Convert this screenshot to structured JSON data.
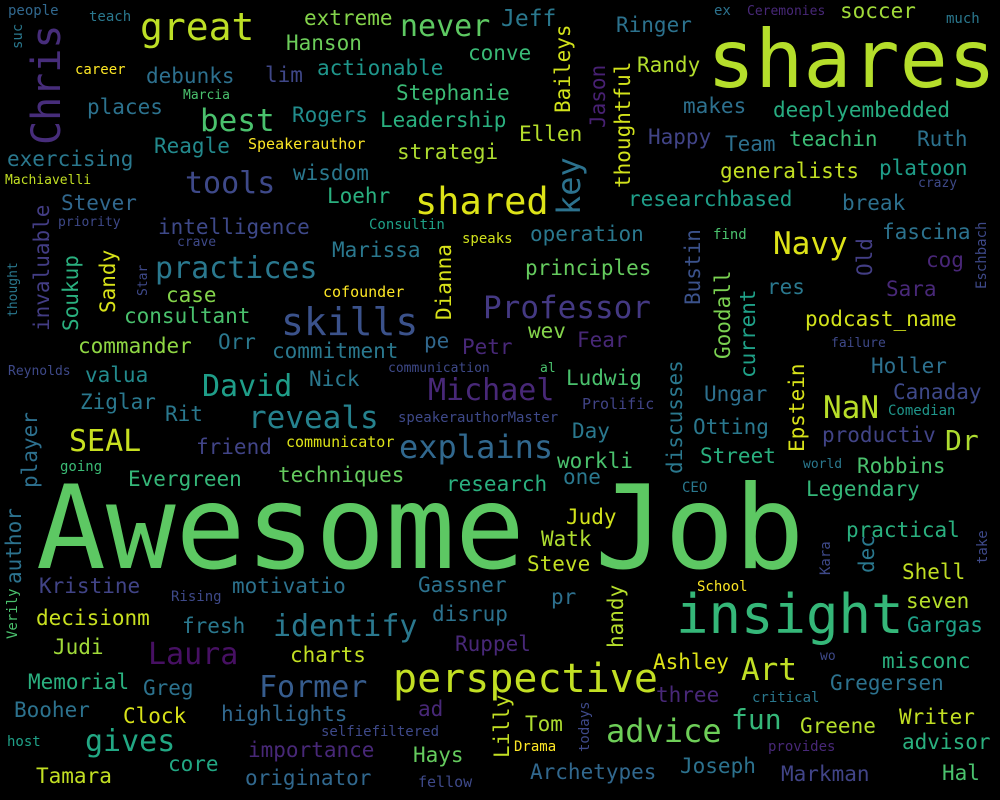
{
  "words": [
    {
      "text": "Awesome Job",
      "color": "#5dc863"
    },
    {
      "text": "shares",
      "color": "#b5de2b"
    },
    {
      "text": "insight",
      "color": "#35b779"
    },
    {
      "text": "perspective",
      "color": "#c2df23"
    },
    {
      "text": "great",
      "color": "#bddf26"
    },
    {
      "text": "skills",
      "color": "#3b528b"
    },
    {
      "text": "shared",
      "color": "#dde318"
    },
    {
      "text": "explains",
      "color": "#31688e"
    },
    {
      "text": "Chris",
      "color": "#472d7b"
    },
    {
      "text": "Professor",
      "color": "#443983"
    },
    {
      "text": "reveals",
      "color": "#26828e"
    },
    {
      "text": "practices",
      "color": "#2a788e"
    },
    {
      "text": "Michael",
      "color": "#482878"
    },
    {
      "text": "David",
      "color": "#1f9e89"
    },
    {
      "text": "identify",
      "color": "#2a788e"
    },
    {
      "text": "Former",
      "color": "#365c8d"
    },
    {
      "text": "advice",
      "color": "#6ece58"
    },
    {
      "text": "Laura",
      "color": "#471063"
    },
    {
      "text": "never",
      "color": "#5ec962"
    },
    {
      "text": "best",
      "color": "#4ac16d"
    },
    {
      "text": "tools",
      "color": "#3e4989"
    },
    {
      "text": "key",
      "color": "#2c728e"
    },
    {
      "text": "Navy",
      "color": "#dde318"
    },
    {
      "text": "NaN",
      "color": "#b8de29"
    },
    {
      "text": "Art",
      "color": "#c0df25"
    },
    {
      "text": "fun",
      "color": "#35b779"
    },
    {
      "text": "gives",
      "color": "#22a884"
    },
    {
      "text": "SEAL",
      "color": "#c8e020"
    },
    {
      "text": "Dr",
      "color": "#addc30"
    },
    {
      "text": "Jeff",
      "color": "#2a788e"
    },
    {
      "text": "Ringer",
      "color": "#2c728e"
    },
    {
      "text": "soccer",
      "color": "#a0da39"
    },
    {
      "text": "extreme",
      "color": "#84d44b"
    },
    {
      "text": "Hanson",
      "color": "#6ccd5a"
    },
    {
      "text": "conve",
      "color": "#3aba76"
    },
    {
      "text": "Randy",
      "color": "#b2dd2d"
    },
    {
      "text": "debunks",
      "color": "#2d708e"
    },
    {
      "text": "lim",
      "color": "#3f4788"
    },
    {
      "text": "actionable",
      "color": "#1f968b"
    },
    {
      "text": "Baileys",
      "color": "#d2e21b"
    },
    {
      "text": "Stephanie",
      "color": "#3bbb75"
    },
    {
      "text": "Jason",
      "color": "#482173"
    },
    {
      "text": "makes",
      "color": "#2d708e"
    },
    {
      "text": "deeplyembedded",
      "color": "#27ad81"
    },
    {
      "text": "places",
      "color": "#2c728e"
    },
    {
      "text": "Rogers",
      "color": "#228d8d"
    },
    {
      "text": "Leadership",
      "color": "#2ab07f"
    },
    {
      "text": "Ellen",
      "color": "#b5de2b"
    },
    {
      "text": "thoughtful",
      "color": "#d2e21b"
    },
    {
      "text": "Happy",
      "color": "#414487"
    },
    {
      "text": "Team",
      "color": "#2d708e"
    },
    {
      "text": "teachin",
      "color": "#3bbb75"
    },
    {
      "text": "Ruth",
      "color": "#2c728e"
    },
    {
      "text": "Reagle",
      "color": "#238a8d"
    },
    {
      "text": "Speakerauthor",
      "color": "#fde725"
    },
    {
      "text": "strategi",
      "color": "#addc30"
    },
    {
      "text": "exercising",
      "color": "#2a788e"
    },
    {
      "text": "wisdom",
      "color": "#2a788e"
    },
    {
      "text": "generalists",
      "color": "#c2df23"
    },
    {
      "text": "platoon",
      "color": "#1f9e89"
    },
    {
      "text": "Machiavelli",
      "color": "#c2df23"
    },
    {
      "text": "crazy",
      "color": "#3e4a89"
    },
    {
      "text": "Loehr",
      "color": "#2ab07f"
    },
    {
      "text": "researchbased",
      "color": "#1f9e89"
    },
    {
      "text": "break",
      "color": "#2d708e"
    },
    {
      "text": "Stever",
      "color": "#31688e"
    },
    {
      "text": "priority",
      "color": "#3e4989"
    },
    {
      "text": "intelligence",
      "color": "#3e4989"
    },
    {
      "text": "Consultin",
      "color": "#1fa188"
    },
    {
      "text": "operation",
      "color": "#2a788e"
    },
    {
      "text": "find",
      "color": "#4ac16d"
    },
    {
      "text": "fascina",
      "color": "#2c728e"
    },
    {
      "text": "Eschbach",
      "color": "#3e4989"
    },
    {
      "text": "invaluable",
      "color": "#433d84"
    },
    {
      "text": "crave",
      "color": "#3e4989"
    },
    {
      "text": "Marissa",
      "color": "#2a788e"
    },
    {
      "text": "speaks",
      "color": "#d0e11c"
    },
    {
      "text": "Dianna",
      "color": "#d8e219"
    },
    {
      "text": "Bustin",
      "color": "#3b528b"
    },
    {
      "text": "Old",
      "color": "#433e85"
    },
    {
      "text": "cog",
      "color": "#482677"
    },
    {
      "text": "thought",
      "color": "#2a788e"
    },
    {
      "text": "Star",
      "color": "#3e4989"
    },
    {
      "text": "Sandy",
      "color": "#d8e219"
    },
    {
      "text": "Soukup",
      "color": "#2ab07f"
    },
    {
      "text": "case",
      "color": "#84d44b"
    },
    {
      "text": "principles",
      "color": "#65cb5e"
    },
    {
      "text": "res",
      "color": "#2a788e"
    },
    {
      "text": "Sara",
      "color": "#482878"
    },
    {
      "text": "cofounder",
      "color": "#fde725"
    },
    {
      "text": "Goodall",
      "color": "#7ad151"
    },
    {
      "text": "consultant",
      "color": "#4ac16d"
    },
    {
      "text": "podcast_name",
      "color": "#d2e21b"
    },
    {
      "text": "wev",
      "color": "#84d44b"
    },
    {
      "text": "current",
      "color": "#1fa188"
    },
    {
      "text": "commander",
      "color": "#8fd744"
    },
    {
      "text": "Orr",
      "color": "#2a788e"
    },
    {
      "text": "commitment",
      "color": "#2a788e"
    },
    {
      "text": "pe",
      "color": "#31688e"
    },
    {
      "text": "Petr",
      "color": "#482878"
    },
    {
      "text": "Fear",
      "color": "#482878"
    },
    {
      "text": "failure",
      "color": "#3e4989"
    },
    {
      "text": "Reynolds",
      "color": "#3e4989"
    },
    {
      "text": "communication",
      "color": "#3e4989"
    },
    {
      "text": "valua",
      "color": "#238a8d"
    },
    {
      "text": "Nick",
      "color": "#2a788e"
    },
    {
      "text": "al",
      "color": "#4ac16d"
    },
    {
      "text": "Ludwig",
      "color": "#4ac16d"
    },
    {
      "text": "discusses",
      "color": "#2a788e"
    },
    {
      "text": "Epstein",
      "color": "#d8e219"
    },
    {
      "text": "Holler",
      "color": "#2d708e"
    },
    {
      "text": "Ungar",
      "color": "#2d708e"
    },
    {
      "text": "Canaday",
      "color": "#3e4989"
    },
    {
      "text": "Ziglar",
      "color": "#2a788e"
    },
    {
      "text": "Rit",
      "color": "#2a788e"
    },
    {
      "text": "speakerauthorMaster",
      "color": "#3e4989"
    },
    {
      "text": "Prolific",
      "color": "#414487"
    },
    {
      "text": "Comedian",
      "color": "#1f968b"
    },
    {
      "text": "player",
      "color": "#2d708e"
    },
    {
      "text": "friend",
      "color": "#414487"
    },
    {
      "text": "communicator",
      "color": "#dde318"
    },
    {
      "text": "Day",
      "color": "#2a788e"
    },
    {
      "text": "Otting",
      "color": "#2a788e"
    },
    {
      "text": "productiv",
      "color": "#414487"
    },
    {
      "text": "workli",
      "color": "#4ac16d"
    },
    {
      "text": "Street",
      "color": "#2ab07f"
    },
    {
      "text": "going",
      "color": "#3bbb75"
    },
    {
      "text": "Evergreen",
      "color": "#35b779"
    },
    {
      "text": "techniques",
      "color": "#65cb5e"
    },
    {
      "text": "one",
      "color": "#2a788e"
    },
    {
      "text": "world",
      "color": "#2a788e"
    },
    {
      "text": "Robbins",
      "color": "#4ac16d"
    },
    {
      "text": "research",
      "color": "#2ab07f"
    },
    {
      "text": "CEO",
      "color": "#2a788e"
    },
    {
      "text": "Legendary",
      "color": "#35b779"
    },
    {
      "text": "author",
      "color": "#2c728e"
    },
    {
      "text": "practical",
      "color": "#2ab07f"
    },
    {
      "text": "Judy",
      "color": "#d2e21b"
    },
    {
      "text": "Watk",
      "color": "#addc30"
    },
    {
      "text": "dec",
      "color": "#2a788e"
    },
    {
      "text": "Kara",
      "color": "#3e4989"
    },
    {
      "text": "take",
      "color": "#3e4989"
    },
    {
      "text": "Verily",
      "color": "#4ac16d"
    },
    {
      "text": "Steve",
      "color": "#c2df23"
    },
    {
      "text": "Kristine",
      "color": "#414487"
    },
    {
      "text": "motivatio",
      "color": "#2c728e"
    },
    {
      "text": "Gassner",
      "color": "#2c728e"
    },
    {
      "text": "Shell",
      "color": "#c2df23"
    },
    {
      "text": "Rising",
      "color": "#3e4989"
    },
    {
      "text": "School",
      "color": "#fde725"
    },
    {
      "text": "seven",
      "color": "#b5de2b"
    },
    {
      "text": "decisionm",
      "color": "#c8e020"
    },
    {
      "text": "fresh",
      "color": "#2a788e"
    },
    {
      "text": "disrup",
      "color": "#2c728e"
    },
    {
      "text": "pr",
      "color": "#2d708e"
    },
    {
      "text": "handy",
      "color": "#b5de2b"
    },
    {
      "text": "Gargas",
      "color": "#1fa188"
    },
    {
      "text": "Judi",
      "color": "#a0da39"
    },
    {
      "text": "Ruppel",
      "color": "#482878"
    },
    {
      "text": "charts",
      "color": "#c2df23"
    },
    {
      "text": "Ashley",
      "color": "#dde318"
    },
    {
      "text": "wo",
      "color": "#3e4989"
    },
    {
      "text": "misconc",
      "color": "#2ab07f"
    },
    {
      "text": "Memorial",
      "color": "#2ab07f"
    },
    {
      "text": "Greg",
      "color": "#2c728e"
    },
    {
      "text": "three",
      "color": "#482878"
    },
    {
      "text": "critical",
      "color": "#2a788e"
    },
    {
      "text": "Gregersen",
      "color": "#2c728e"
    },
    {
      "text": "Booher",
      "color": "#2c728e"
    },
    {
      "text": "Clock",
      "color": "#d8e219"
    },
    {
      "text": "highlights",
      "color": "#31688e"
    },
    {
      "text": "ad",
      "color": "#482878"
    },
    {
      "text": "Lilly",
      "color": "#c2df23"
    },
    {
      "text": "Tom",
      "color": "#addc30"
    },
    {
      "text": "todays",
      "color": "#3e4989"
    },
    {
      "text": "Greene",
      "color": "#b5de2b"
    },
    {
      "text": "Writer",
      "color": "#c2df23"
    },
    {
      "text": "host",
      "color": "#1fa188"
    },
    {
      "text": "selfiefiltered",
      "color": "#3e4989"
    },
    {
      "text": "Drama",
      "color": "#fde725"
    },
    {
      "text": "provides",
      "color": "#482878"
    },
    {
      "text": "advisor",
      "color": "#2ab07f"
    },
    {
      "text": "importance",
      "color": "#482878"
    },
    {
      "text": "Hays",
      "color": "#65cb5e"
    },
    {
      "text": "core",
      "color": "#22a884"
    },
    {
      "text": "Archetypes",
      "color": "#31688e"
    },
    {
      "text": "Joseph",
      "color": "#2c728e"
    },
    {
      "text": "Markman",
      "color": "#414487"
    },
    {
      "text": "Hal",
      "color": "#4ac16d"
    },
    {
      "text": "Tamara",
      "color": "#c2df23"
    },
    {
      "text": "originator",
      "color": "#31688e"
    },
    {
      "text": "fellow",
      "color": "#3e4989"
    },
    {
      "text": "people",
      "color": "#31688e"
    },
    {
      "text": "teach",
      "color": "#2a788e"
    },
    {
      "text": "ex",
      "color": "#2c728e"
    },
    {
      "text": "Ceremonies",
      "color": "#482878"
    },
    {
      "text": "much",
      "color": "#2a788e"
    },
    {
      "text": "suc",
      "color": "#2a788e"
    },
    {
      "text": "career",
      "color": "#fde725"
    },
    {
      "text": "Marcia",
      "color": "#4ac16d"
    }
  ]
}
